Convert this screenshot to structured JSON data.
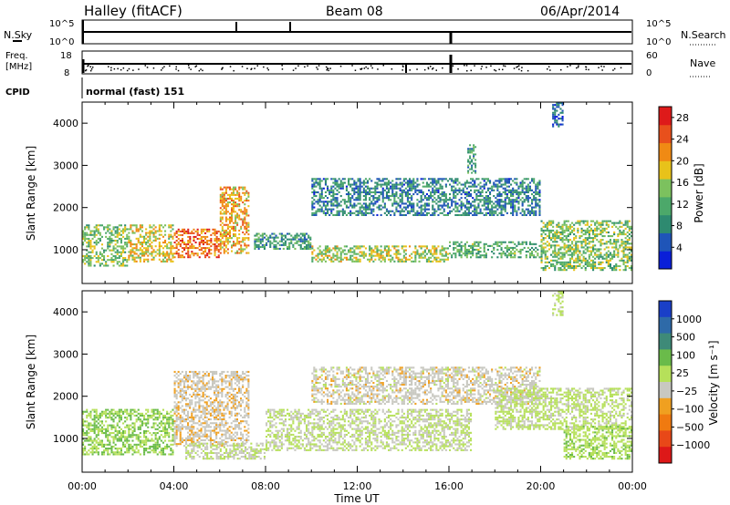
{
  "header": {
    "station": "Halley (fitACF)",
    "beam": "Beam 08",
    "date": "06/Apr/2014"
  },
  "panels": {
    "nsky": {
      "label": "N.Sky",
      "left_ticks": [
        "10^5",
        "10^0"
      ],
      "right_ticks": [
        "10^5",
        "10^0"
      ],
      "right_label": "N.Search"
    },
    "freq": {
      "label_line1": "Freq.",
      "label_line2": "[MHz]",
      "left_ticks": [
        "18",
        "8"
      ],
      "right_ticks": [
        "60",
        "0"
      ],
      "right_label": "Nave"
    },
    "cpid": {
      "label": "CPID",
      "value": "normal (fast) 151"
    }
  },
  "colors": {
    "power_scale": [
      "#0a1fd8",
      "#1f55b8",
      "#2e8a70",
      "#4ca86a",
      "#7cc15e",
      "#e8c21a",
      "#f08a14",
      "#e8501c",
      "#de1a1a"
    ],
    "velocity_scale": [
      "#1a3fc8",
      "#2e6aa8",
      "#3e8a78",
      "#6abb4a",
      "#b6e05a",
      "#c8c8c0",
      "#f0a020",
      "#f07a10",
      "#e84818",
      "#dd1818"
    ],
    "frame": "#000000"
  },
  "chart_data": [
    {
      "type": "heatmap",
      "name": "power",
      "ylabel": "Slant Range [km]",
      "xlabel": "",
      "y_ticks": [
        "1000",
        "2000",
        "3000",
        "4000"
      ],
      "ylim": [
        200,
        4500
      ],
      "xlim": [
        0,
        24
      ],
      "colorbar": {
        "label": "Power [dB]",
        "ticks": [
          "4",
          "8",
          "12",
          "16",
          "20",
          "24",
          "28"
        ],
        "range": [
          0,
          30
        ]
      },
      "regions": [
        {
          "x": [
            0.0,
            2.0
          ],
          "y": [
            600,
            1600
          ],
          "value": 14
        },
        {
          "x": [
            2.0,
            4.0
          ],
          "y": [
            700,
            1600
          ],
          "value": 18
        },
        {
          "x": [
            4.0,
            6.0
          ],
          "y": [
            800,
            1500
          ],
          "value": 24
        },
        {
          "x": [
            6.0,
            7.3
          ],
          "y": [
            900,
            2500
          ],
          "value": 20
        },
        {
          "x": [
            7.5,
            10.0
          ],
          "y": [
            1000,
            1400
          ],
          "value": 10
        },
        {
          "x": [
            10.0,
            16.0
          ],
          "y": [
            700,
            1100
          ],
          "value": 16
        },
        {
          "x": [
            16.0,
            20.0
          ],
          "y": [
            800,
            1200
          ],
          "value": 12
        },
        {
          "x": [
            20.0,
            24.0
          ],
          "y": [
            500,
            1700
          ],
          "value": 14
        },
        {
          "x": [
            10.0,
            20.0
          ],
          "y": [
            1800,
            2700
          ],
          "value": 8
        },
        {
          "x": [
            16.8,
            17.2
          ],
          "y": [
            2800,
            3500
          ],
          "value": 10
        },
        {
          "x": [
            20.5,
            21.0
          ],
          "y": [
            3900,
            4500
          ],
          "value": 6
        }
      ]
    },
    {
      "type": "heatmap",
      "name": "velocity",
      "ylabel": "Slant Range [km]",
      "xlabel": "Time UT",
      "x_ticks": [
        "00:00",
        "04:00",
        "08:00",
        "12:00",
        "16:00",
        "20:00",
        "00:00"
      ],
      "y_ticks": [
        "1000",
        "2000",
        "3000",
        "4000"
      ],
      "ylim": [
        200,
        4500
      ],
      "xlim": [
        0,
        24
      ],
      "colorbar": {
        "label": "Velocity [m s⁻¹]",
        "ticks": [
          "1000",
          "500",
          "100",
          "25",
          "−25",
          "−100",
          "−500",
          "−1000"
        ],
        "range": [
          -1500,
          1500
        ]
      },
      "regions": [
        {
          "x": [
            0.0,
            4.0
          ],
          "y": [
            600,
            1700
          ],
          "value": 300
        },
        {
          "x": [
            4.0,
            7.3
          ],
          "y": [
            800,
            2600
          ],
          "value": -200
        },
        {
          "x": [
            4.5,
            8.0
          ],
          "y": [
            500,
            900
          ],
          "value": 0
        },
        {
          "x": [
            8.0,
            17.0
          ],
          "y": [
            700,
            1700
          ],
          "value": 0
        },
        {
          "x": [
            10.0,
            20.0
          ],
          "y": [
            1800,
            2700
          ],
          "value": -150
        },
        {
          "x": [
            18.0,
            24.0
          ],
          "y": [
            1200,
            2200
          ],
          "value": 80
        },
        {
          "x": [
            21.0,
            24.0
          ],
          "y": [
            500,
            1300
          ],
          "value": 200
        },
        {
          "x": [
            20.5,
            21.0
          ],
          "y": [
            3900,
            4500
          ],
          "value": 100
        }
      ]
    }
  ]
}
